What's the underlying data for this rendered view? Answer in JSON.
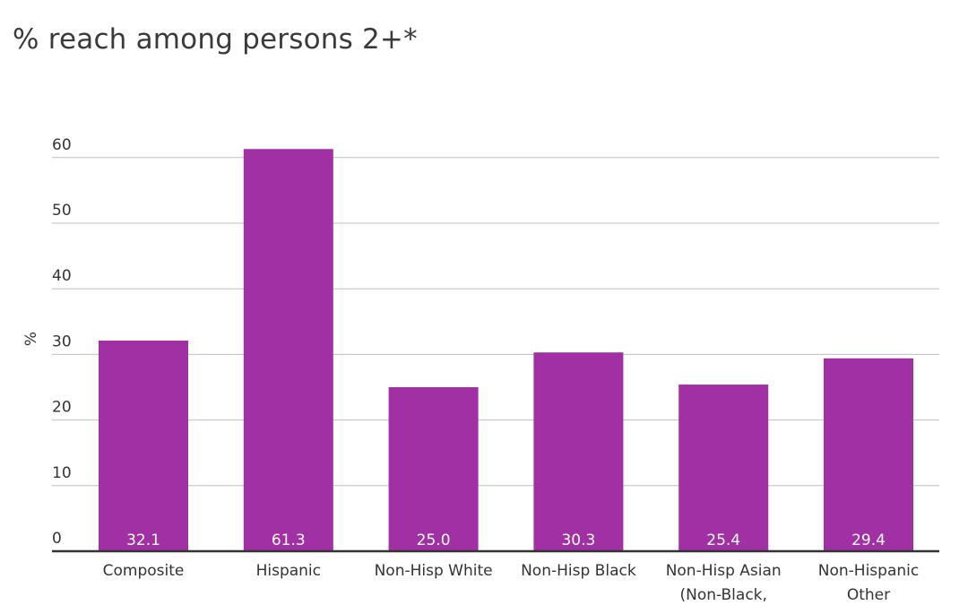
{
  "chart_data": {
    "type": "bar",
    "title": "% reach among persons 2+*",
    "xlabel": "",
    "ylabel": "%",
    "ylim": [
      0,
      60
    ],
    "yticks": [
      0,
      10,
      20,
      30,
      40,
      50,
      60
    ],
    "grid": true,
    "categories": [
      [
        "Composite"
      ],
      [
        "Hispanic"
      ],
      [
        "Non-Hisp White"
      ],
      [
        "Non-Hisp Black"
      ],
      [
        "Non-Hisp Asian",
        "(Non-Black,"
      ],
      [
        "Non-Hispanic",
        "Other"
      ]
    ],
    "values": [
      32.1,
      61.3,
      25.0,
      30.3,
      25.4,
      29.4
    ],
    "data_labels": [
      "32.1",
      "61.3",
      "25.0",
      "30.3",
      "25.4",
      "29.4"
    ],
    "colors": {
      "bar": "#a030a4",
      "grid": "#bdbdbd",
      "baseline": "#333333",
      "data_label": "#ffffff"
    }
  }
}
